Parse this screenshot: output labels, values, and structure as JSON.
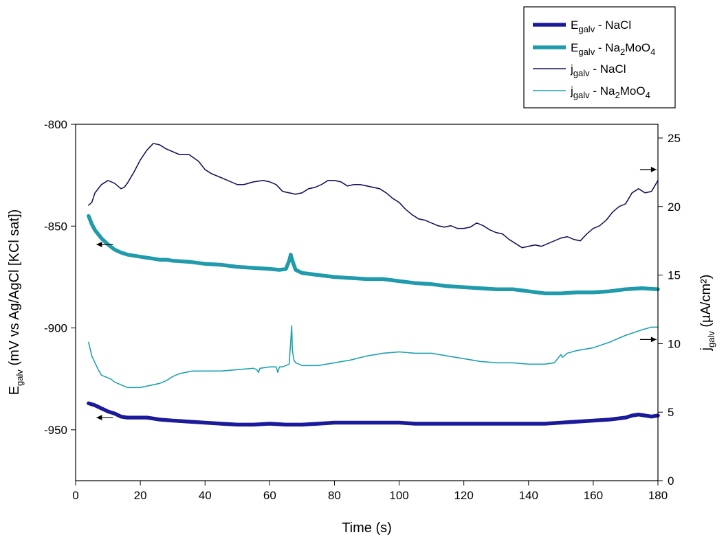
{
  "chart_data": {
    "type": "line",
    "x": {
      "label": "Time (s)",
      "range": [
        0,
        180
      ],
      "ticks": [
        "0",
        "20",
        "40",
        "60",
        "80",
        "100",
        "120",
        "140",
        "160",
        "180"
      ]
    },
    "y_left": {
      "label_main": "E",
      "label_sub": "galv",
      "label_rest": " (mV vs Ag/AgCl [KCl sat])",
      "range": [
        -975,
        -800
      ],
      "ticks": [
        "-800",
        "-850",
        "-900",
        "-950"
      ]
    },
    "y_right": {
      "label_main": "j",
      "label_sub": "galv",
      "label_rest": " (µA/cm²)",
      "range": [
        0,
        26
      ],
      "ticks": [
        "0",
        "5",
        "10",
        "15",
        "20",
        "25"
      ]
    },
    "legend": {
      "placement": "top-right",
      "entries": [
        {
          "main": "E",
          "sub": "galv",
          "rest": " - NaCl",
          "rest_parts": [
            " - NaCl"
          ]
        },
        {
          "main": "E",
          "sub": "galv",
          "rest": " - Na2MoO4",
          "rest_parts": [
            " - Na",
            "2",
            "MoO",
            "4"
          ]
        },
        {
          "main": "j",
          "sub": "galv",
          "rest": " - NaCl",
          "rest_parts": [
            " - NaCl"
          ]
        },
        {
          "main": "j",
          "sub": "galv",
          "rest": " - Na2MoO4",
          "rest_parts": [
            " - Na",
            "2",
            "MoO",
            "4"
          ]
        }
      ]
    },
    "series": [
      {
        "name": "Egalv - NaCl",
        "axis": "left",
        "color": "#1a1a9a",
        "style": "thick",
        "x": [
          4,
          5,
          6,
          8,
          10,
          12,
          14,
          16,
          18,
          20,
          22,
          24,
          26,
          30,
          35,
          40,
          45,
          50,
          55,
          60,
          65,
          70,
          75,
          80,
          85,
          90,
          95,
          100,
          105,
          110,
          115,
          120,
          125,
          130,
          135,
          140,
          145,
          150,
          155,
          160,
          165,
          170,
          172,
          174,
          176,
          178,
          180
        ],
        "y": [
          -937,
          -937.5,
          -938,
          -939.5,
          -941,
          -942,
          -943.5,
          -944,
          -944,
          -944,
          -944,
          -944.5,
          -945,
          -945.5,
          -946,
          -946.5,
          -947,
          -947.5,
          -947.5,
          -947,
          -947.5,
          -947.5,
          -947,
          -946.5,
          -946.5,
          -946.5,
          -946.5,
          -946.5,
          -947,
          -947,
          -947,
          -947,
          -947,
          -947,
          -947,
          -947,
          -947,
          -946.5,
          -946,
          -945.5,
          -945,
          -944,
          -943,
          -942.5,
          -943,
          -943.5,
          -943
        ]
      },
      {
        "name": "Egalv - Na2MoO4",
        "axis": "left",
        "color": "#1f9bab",
        "style": "thick",
        "x": [
          4,
          5,
          6,
          7,
          8,
          9,
          10,
          12,
          14,
          16,
          18,
          20,
          22,
          24,
          26,
          28,
          30,
          35,
          40,
          45,
          50,
          55,
          60,
          63,
          65,
          66,
          66.5,
          67,
          68,
          70,
          75,
          80,
          85,
          90,
          95,
          100,
          105,
          110,
          115,
          120,
          125,
          130,
          135,
          140,
          145,
          150,
          155,
          160,
          165,
          170,
          175,
          180
        ],
        "y": [
          -845,
          -849,
          -852,
          -854,
          -856,
          -857.5,
          -859,
          -861.5,
          -863,
          -864,
          -864.5,
          -865,
          -865.5,
          -866,
          -866.5,
          -866.5,
          -867,
          -867.5,
          -868.5,
          -869,
          -870,
          -870.5,
          -871,
          -871.5,
          -871,
          -867,
          -864,
          -867,
          -871.5,
          -873,
          -874,
          -875,
          -875.5,
          -876,
          -876,
          -877,
          -878,
          -878.5,
          -879.5,
          -880,
          -880.5,
          -881,
          -881,
          -882,
          -883,
          -883,
          -882.5,
          -882.5,
          -882,
          -881,
          -880.5,
          -881
        ]
      },
      {
        "name": "jgalv - NaCl",
        "axis": "right",
        "color": "#14145a",
        "style": "thin",
        "x": [
          4,
          5,
          6,
          8,
          10,
          12,
          14,
          15,
          16,
          18,
          20,
          22,
          24,
          26,
          28,
          30,
          32,
          35,
          38,
          40,
          42,
          45,
          48,
          50,
          52,
          55,
          58,
          60,
          62,
          64,
          66,
          68,
          70,
          72,
          74,
          76,
          78,
          80,
          82,
          84,
          86,
          88,
          90,
          92,
          94,
          96,
          98,
          100,
          102,
          104,
          106,
          108,
          110,
          112,
          114,
          116,
          118,
          120,
          122,
          124,
          126,
          128,
          130,
          132,
          134,
          136,
          138,
          140,
          142,
          144,
          146,
          148,
          150,
          152,
          154,
          156,
          158,
          160,
          162,
          164,
          166,
          168,
          170,
          172,
          174,
          176,
          178,
          180
        ],
        "y": [
          20.1,
          20.3,
          21,
          21.6,
          21.9,
          21.7,
          21.3,
          21.4,
          21.7,
          22.5,
          23.4,
          24.1,
          24.6,
          24.5,
          24.2,
          24,
          23.8,
          23.8,
          23.3,
          22.7,
          22.4,
          22.1,
          21.8,
          21.6,
          21.6,
          21.8,
          21.9,
          21.8,
          21.6,
          21.1,
          21,
          20.9,
          21,
          21.3,
          21.4,
          21.6,
          21.9,
          21.9,
          21.8,
          21.5,
          21.6,
          21.6,
          21.5,
          21.4,
          21.3,
          21,
          20.6,
          20.3,
          19.8,
          19.4,
          19.1,
          19.0,
          18.8,
          18.6,
          18.5,
          18.6,
          18.4,
          18.4,
          18.5,
          18.8,
          18.6,
          18.3,
          18.1,
          18.0,
          17.6,
          17.3,
          17.0,
          17.1,
          17.2,
          17.1,
          17.3,
          17.5,
          17.7,
          17.8,
          17.6,
          17.5,
          18.0,
          18.4,
          18.6,
          19.0,
          19.6,
          20.0,
          20.2,
          21.0,
          21.3,
          21.0,
          21.1,
          21.9
        ]
      },
      {
        "name": "jgalv - Na2MoO4",
        "axis": "right",
        "color": "#1ea0ad",
        "style": "thin",
        "x": [
          4,
          4.5,
          5,
          6,
          7,
          8,
          9,
          10,
          11,
          12,
          13,
          14,
          15,
          16,
          18,
          20,
          22,
          24,
          26,
          28,
          30,
          32,
          34,
          36,
          38,
          40,
          45,
          50,
          55,
          56,
          56.5,
          57,
          60,
          62,
          62.5,
          63,
          64,
          65,
          66,
          66.5,
          66.8,
          67,
          67.5,
          68,
          70,
          75,
          80,
          85,
          90,
          95,
          100,
          105,
          110,
          115,
          120,
          125,
          130,
          135,
          140,
          145,
          148,
          150,
          150.5,
          152,
          155,
          160,
          165,
          170,
          175,
          178,
          180
        ],
        "y": [
          10.1,
          9.6,
          9.1,
          8.6,
          8.1,
          7.7,
          7.6,
          7.5,
          7.4,
          7.2,
          7.1,
          7.0,
          6.9,
          6.8,
          6.8,
          6.8,
          6.9,
          7.0,
          7.1,
          7.3,
          7.6,
          7.8,
          7.9,
          8.0,
          8.0,
          8.0,
          8.0,
          8.1,
          8.2,
          8.1,
          7.9,
          8.2,
          8.3,
          8.3,
          7.9,
          8.3,
          8.3,
          8.4,
          8.5,
          10.2,
          11.3,
          9.5,
          8.8,
          8.6,
          8.4,
          8.4,
          8.6,
          8.8,
          9.1,
          9.3,
          9.4,
          9.3,
          9.3,
          9.1,
          8.9,
          8.7,
          8.6,
          8.6,
          8.5,
          8.5,
          8.6,
          9.2,
          9.0,
          9.3,
          9.5,
          9.7,
          10.1,
          10.6,
          11.0,
          11.2,
          11.2
        ]
      }
    ],
    "arrows": [
      {
        "axis": "left",
        "x": 9,
        "y": -859,
        "direction": "left"
      },
      {
        "axis": "left",
        "x": 9,
        "y": -944,
        "direction": "left"
      },
      {
        "axis": "right",
        "x": 177,
        "y": 22.7,
        "direction": "right"
      },
      {
        "axis": "right",
        "x": 177,
        "y": 10.3,
        "direction": "right"
      }
    ],
    "grid": false
  }
}
